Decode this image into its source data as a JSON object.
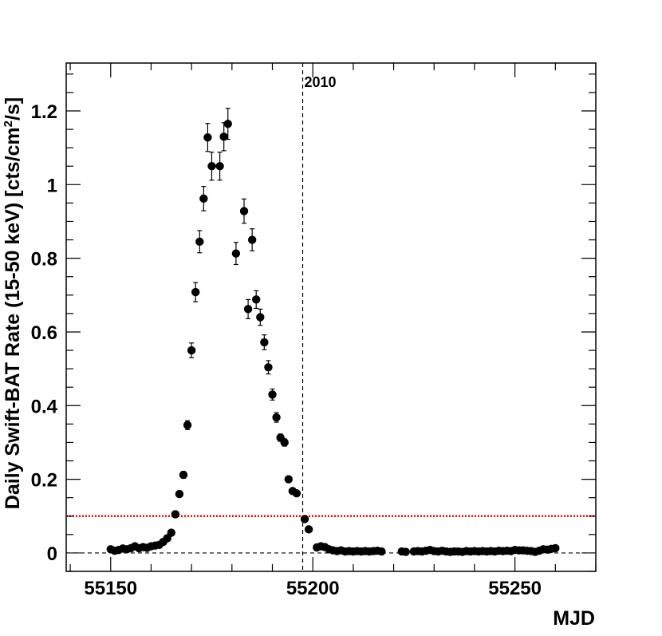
{
  "chart_data": {
    "type": "scatter",
    "xlabel": "MJD",
    "ylabel": "Daily Swift-BAT Rate (15-50 keV) [cts/cm",
    "ylabel_sup": "2",
    "ylabel_end": "/s]",
    "xlim": [
      55139,
      55270
    ],
    "ylim": [
      -0.05,
      1.33
    ],
    "x_ticks": [
      55150,
      55200,
      55250
    ],
    "y_ticks": [
      0,
      0.2,
      0.4,
      0.6,
      0.8,
      1,
      1.2
    ],
    "y_tick_labels": [
      "0",
      "0.2",
      "0.4",
      "0.6",
      "0.8",
      "1",
      "1.2"
    ],
    "grid": false,
    "annotations": [
      {
        "text": "2010",
        "x": 55197.5
      }
    ],
    "reference_lines": [
      {
        "orientation": "vertical",
        "x": 55197.5,
        "style": "dashed",
        "color": "#000000"
      },
      {
        "orientation": "horizontal",
        "y": 0.1,
        "style": "dotted",
        "color": "#ff0000"
      },
      {
        "orientation": "horizontal",
        "y": 0,
        "style": "dashed",
        "color": "#000000"
      }
    ],
    "series": [
      {
        "color": "#000000",
        "points": [
          {
            "x": 55150,
            "y": 0.01,
            "err": 0.004
          },
          {
            "x": 55151,
            "y": 0.006,
            "err": 0.004
          },
          {
            "x": 55152,
            "y": 0.008,
            "err": 0.004
          },
          {
            "x": 55153,
            "y": 0.012,
            "err": 0.004
          },
          {
            "x": 55154,
            "y": 0.01,
            "err": 0.004
          },
          {
            "x": 55155,
            "y": 0.013,
            "err": 0.004
          },
          {
            "x": 55156,
            "y": 0.018,
            "err": 0.004
          },
          {
            "x": 55157,
            "y": 0.013,
            "err": 0.004
          },
          {
            "x": 55158,
            "y": 0.016,
            "err": 0.004
          },
          {
            "x": 55159,
            "y": 0.014,
            "err": 0.004
          },
          {
            "x": 55160,
            "y": 0.018,
            "err": 0.004
          },
          {
            "x": 55161,
            "y": 0.02,
            "err": 0.004
          },
          {
            "x": 55162,
            "y": 0.022,
            "err": 0.004
          },
          {
            "x": 55163,
            "y": 0.03,
            "err": 0.005
          },
          {
            "x": 55164,
            "y": 0.04,
            "err": 0.005
          },
          {
            "x": 55165,
            "y": 0.055,
            "err": 0.006
          },
          {
            "x": 55166,
            "y": 0.105,
            "err": 0.008
          },
          {
            "x": 55167,
            "y": 0.16,
            "err": 0.008
          },
          {
            "x": 55168,
            "y": 0.212,
            "err": 0.009
          },
          {
            "x": 55169,
            "y": 0.347,
            "err": 0.012
          },
          {
            "x": 55170,
            "y": 0.55,
            "err": 0.02
          },
          {
            "x": 55171,
            "y": 0.708,
            "err": 0.026
          },
          {
            "x": 55172,
            "y": 0.845,
            "err": 0.03
          },
          {
            "x": 55173,
            "y": 0.962,
            "err": 0.033
          },
          {
            "x": 55174,
            "y": 1.128,
            "err": 0.038
          },
          {
            "x": 55175,
            "y": 1.05,
            "err": 0.038
          },
          {
            "x": 55177,
            "y": 1.05,
            "err": 0.038
          },
          {
            "x": 55178,
            "y": 1.13,
            "err": 0.038
          },
          {
            "x": 55179,
            "y": 1.165,
            "err": 0.042
          },
          {
            "x": 55181,
            "y": 0.813,
            "err": 0.03
          },
          {
            "x": 55183,
            "y": 0.928,
            "err": 0.033
          },
          {
            "x": 55184,
            "y": 0.662,
            "err": 0.026
          },
          {
            "x": 55185,
            "y": 0.85,
            "err": 0.03
          },
          {
            "x": 55186,
            "y": 0.688,
            "err": 0.024
          },
          {
            "x": 55187,
            "y": 0.64,
            "err": 0.022
          },
          {
            "x": 55188,
            "y": 0.572,
            "err": 0.02
          },
          {
            "x": 55189,
            "y": 0.504,
            "err": 0.018
          },
          {
            "x": 55190,
            "y": 0.43,
            "err": 0.015
          },
          {
            "x": 55191,
            "y": 0.368,
            "err": 0.013
          },
          {
            "x": 55192,
            "y": 0.313,
            "err": 0.01
          },
          {
            "x": 55193,
            "y": 0.3,
            "err": 0.01
          },
          {
            "x": 55194,
            "y": 0.2,
            "err": 0.008
          },
          {
            "x": 55195,
            "y": 0.168,
            "err": 0.007
          },
          {
            "x": 55196,
            "y": 0.162,
            "err": 0.007
          },
          {
            "x": 55198,
            "y": 0.092,
            "err": 0.006
          },
          {
            "x": 55199,
            "y": 0.064,
            "err": 0.005
          },
          {
            "x": 55201,
            "y": 0.015,
            "err": 0.004
          },
          {
            "x": 55202,
            "y": 0.018,
            "err": 0.004
          },
          {
            "x": 55203,
            "y": 0.016,
            "err": 0.004
          },
          {
            "x": 55204,
            "y": 0.01,
            "err": 0.004
          },
          {
            "x": 55205,
            "y": 0.007,
            "err": 0.004
          },
          {
            "x": 55206,
            "y": 0.005,
            "err": 0.004
          },
          {
            "x": 55207,
            "y": 0.007,
            "err": 0.004
          },
          {
            "x": 55208,
            "y": 0.004,
            "err": 0.004
          },
          {
            "x": 55209,
            "y": 0.005,
            "err": 0.004
          },
          {
            "x": 55210,
            "y": 0.004,
            "err": 0.004
          },
          {
            "x": 55211,
            "y": 0.005,
            "err": 0.004
          },
          {
            "x": 55212,
            "y": 0.004,
            "err": 0.004
          },
          {
            "x": 55213,
            "y": 0.005,
            "err": 0.004
          },
          {
            "x": 55214,
            "y": 0.004,
            "err": 0.004
          },
          {
            "x": 55215,
            "y": 0.005,
            "err": 0.004
          },
          {
            "x": 55216,
            "y": 0.006,
            "err": 0.004
          },
          {
            "x": 55217,
            "y": 0.004,
            "err": 0.004
          },
          {
            "x": 55222,
            "y": 0.004,
            "err": 0.004
          },
          {
            "x": 55223,
            "y": 0.003,
            "err": 0.004
          },
          {
            "x": 55225,
            "y": 0.004,
            "err": 0.004
          },
          {
            "x": 55226,
            "y": 0.005,
            "err": 0.004
          },
          {
            "x": 55227,
            "y": 0.004,
            "err": 0.004
          },
          {
            "x": 55228,
            "y": 0.006,
            "err": 0.004
          },
          {
            "x": 55229,
            "y": 0.008,
            "err": 0.004
          },
          {
            "x": 55230,
            "y": 0.005,
            "err": 0.004
          },
          {
            "x": 55231,
            "y": 0.004,
            "err": 0.004
          },
          {
            "x": 55232,
            "y": 0.006,
            "err": 0.004
          },
          {
            "x": 55233,
            "y": 0.004,
            "err": 0.004
          },
          {
            "x": 55234,
            "y": 0.003,
            "err": 0.004
          },
          {
            "x": 55235,
            "y": 0.004,
            "err": 0.004
          },
          {
            "x": 55236,
            "y": 0.004,
            "err": 0.004
          },
          {
            "x": 55237,
            "y": 0.003,
            "err": 0.004
          },
          {
            "x": 55238,
            "y": 0.005,
            "err": 0.004
          },
          {
            "x": 55239,
            "y": 0.004,
            "err": 0.004
          },
          {
            "x": 55240,
            "y": 0.005,
            "err": 0.004
          },
          {
            "x": 55241,
            "y": 0.004,
            "err": 0.004
          },
          {
            "x": 55242,
            "y": 0.005,
            "err": 0.004
          },
          {
            "x": 55243,
            "y": 0.004,
            "err": 0.004
          },
          {
            "x": 55244,
            "y": 0.005,
            "err": 0.004
          },
          {
            "x": 55245,
            "y": 0.004,
            "err": 0.004
          },
          {
            "x": 55246,
            "y": 0.006,
            "err": 0.004
          },
          {
            "x": 55247,
            "y": 0.005,
            "err": 0.004
          },
          {
            "x": 55248,
            "y": 0.006,
            "err": 0.004
          },
          {
            "x": 55249,
            "y": 0.005,
            "err": 0.004
          },
          {
            "x": 55250,
            "y": 0.008,
            "err": 0.004
          },
          {
            "x": 55251,
            "y": 0.007,
            "err": 0.004
          },
          {
            "x": 55252,
            "y": 0.007,
            "err": 0.004
          },
          {
            "x": 55253,
            "y": 0.006,
            "err": 0.004
          },
          {
            "x": 55254,
            "y": 0.005,
            "err": 0.004
          },
          {
            "x": 55255,
            "y": 0.003,
            "err": 0.004
          },
          {
            "x": 55256,
            "y": 0.006,
            "err": 0.004
          },
          {
            "x": 55257,
            "y": 0.01,
            "err": 0.004
          },
          {
            "x": 55258,
            "y": 0.009,
            "err": 0.004
          },
          {
            "x": 55259,
            "y": 0.011,
            "err": 0.004
          },
          {
            "x": 55260,
            "y": 0.013,
            "err": 0.004
          }
        ]
      }
    ]
  }
}
